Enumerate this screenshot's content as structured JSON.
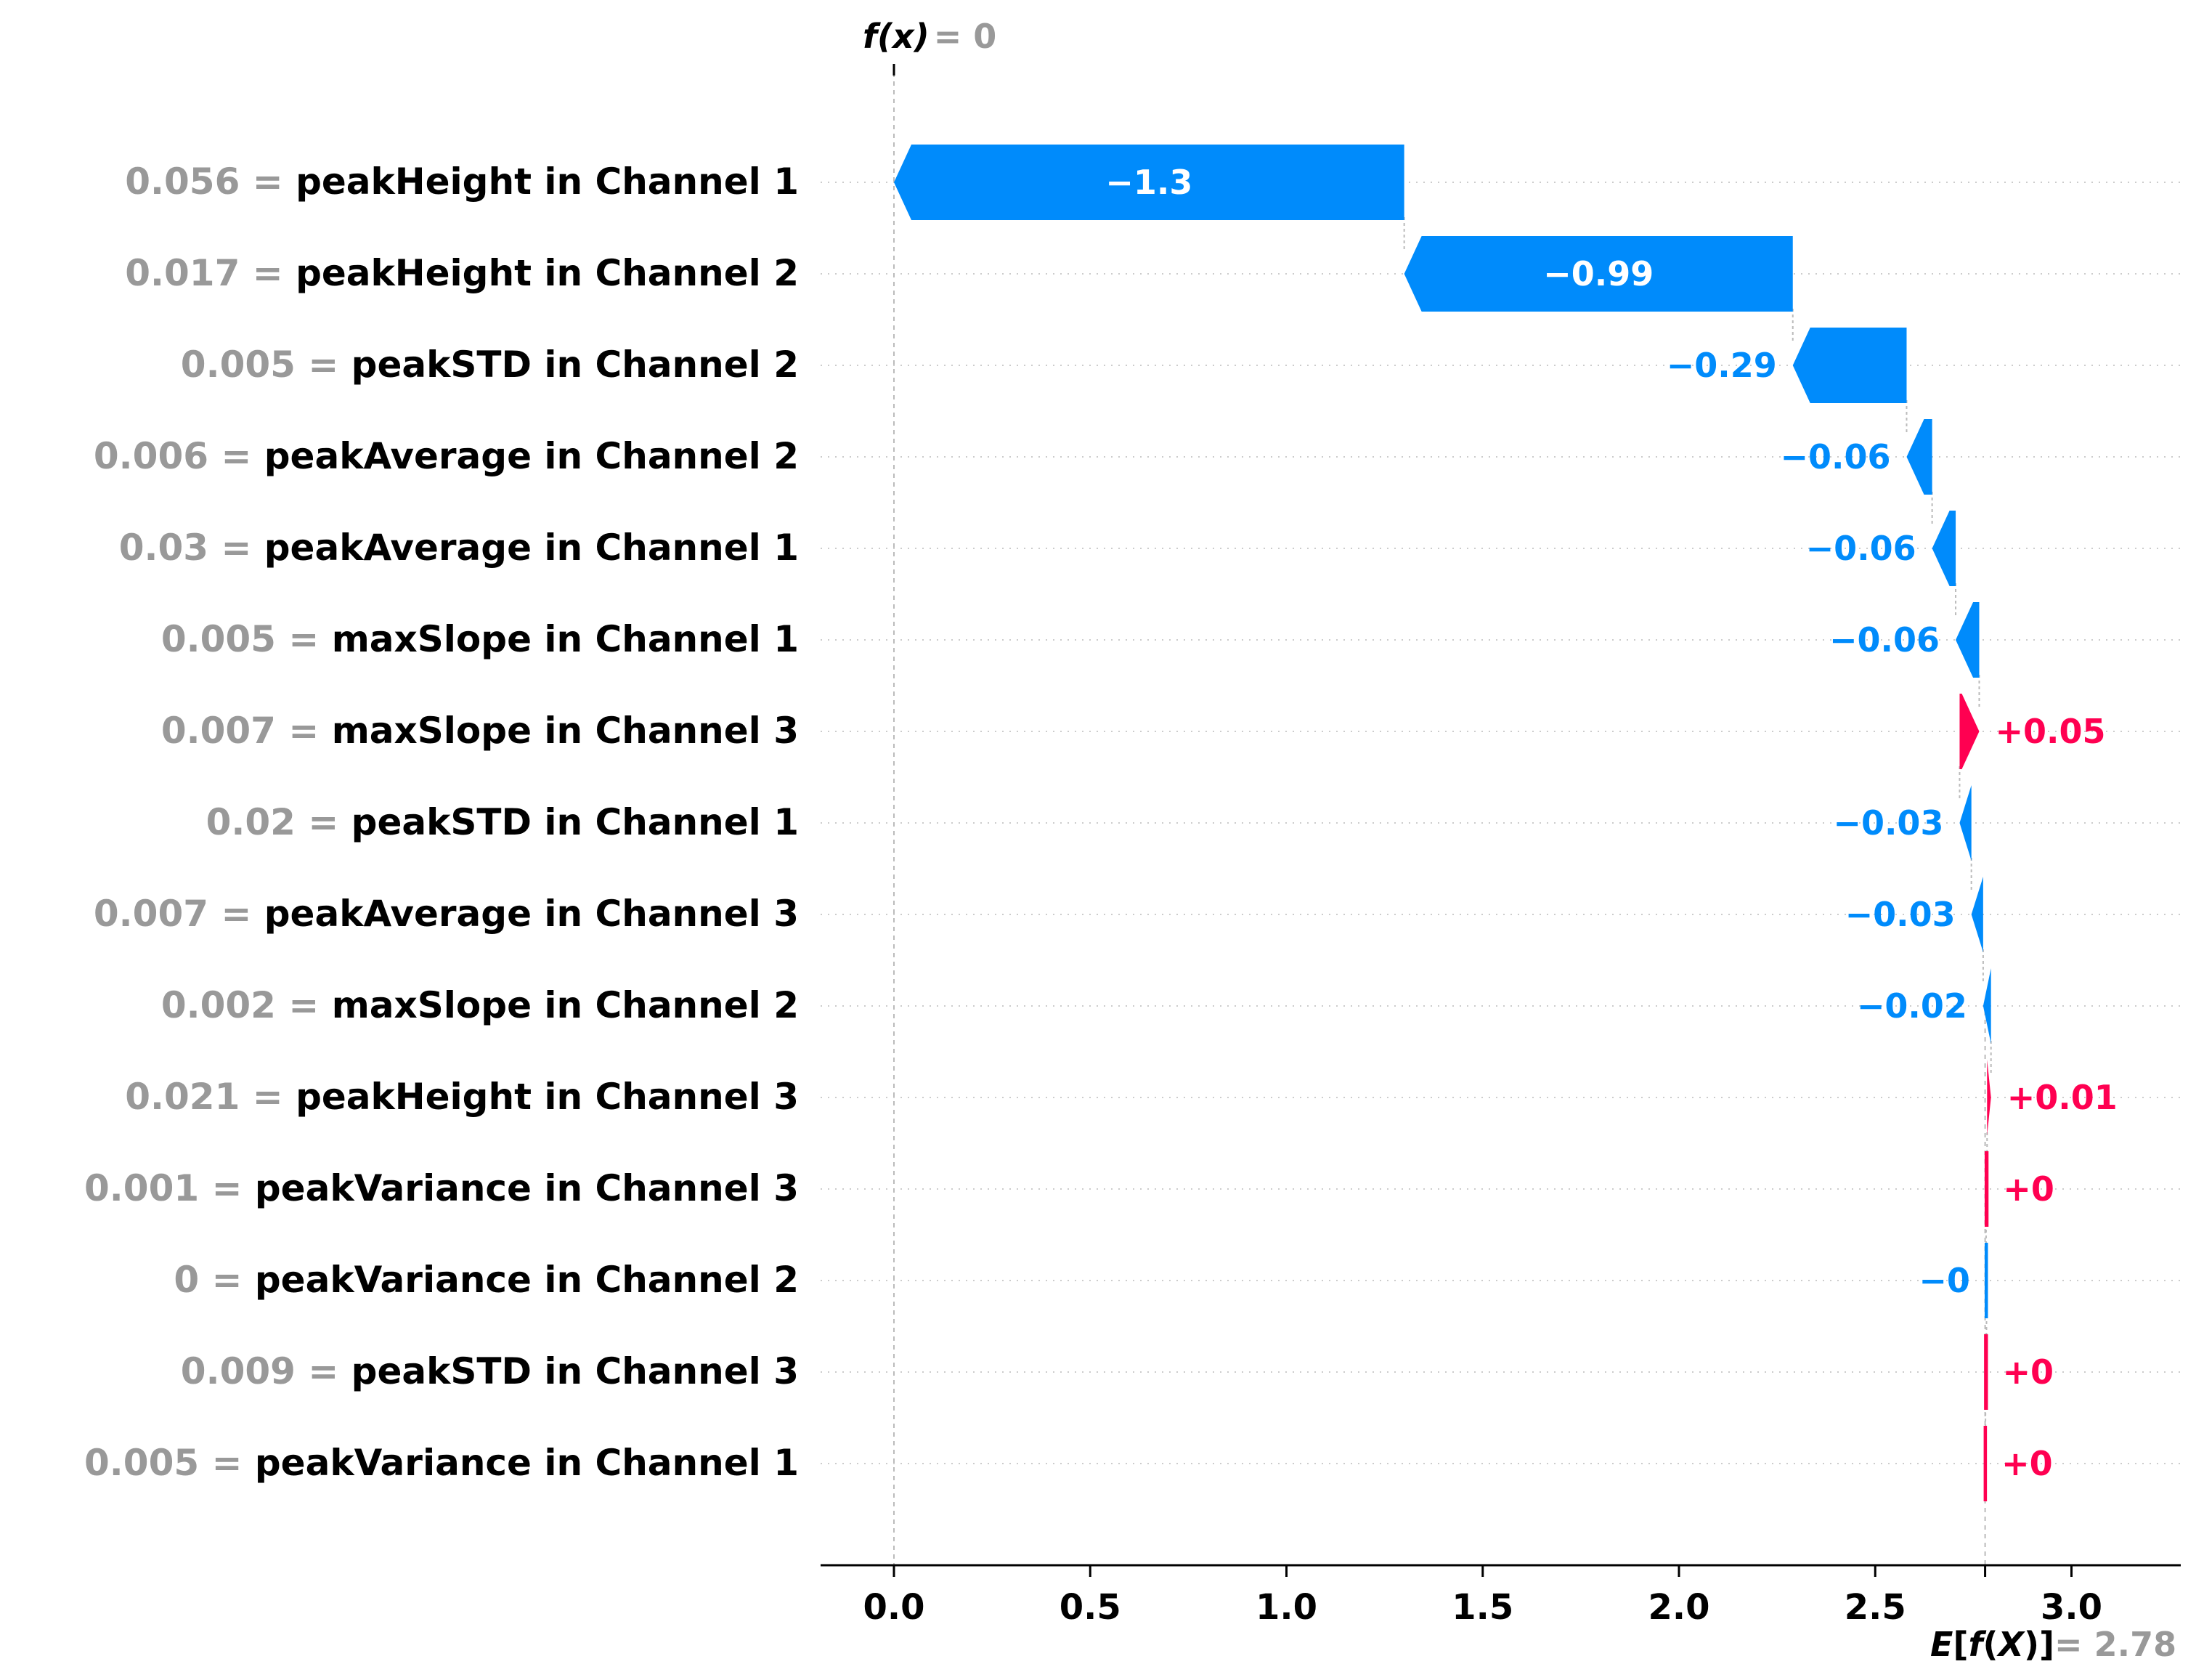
{
  "chart_data": {
    "type": "waterfall",
    "fx": {
      "label_f": "f",
      "label_x": "(x)",
      "value_text": "= 0",
      "value": 0
    },
    "base": {
      "label_e": "E",
      "label_f": "f",
      "label_X": "X",
      "value_text": "= 2.78",
      "value": 2.78
    },
    "xlim": [
      -0.18,
      3.27
    ],
    "xticks": [
      {
        "value": 0.0,
        "label": "0.0"
      },
      {
        "value": 0.5,
        "label": "0.5"
      },
      {
        "value": 1.0,
        "label": "1.0"
      },
      {
        "value": 1.5,
        "label": "1.5"
      },
      {
        "value": 2.0,
        "label": "2.0"
      },
      {
        "value": 2.5,
        "label": "2.5"
      },
      {
        "value": 3.0,
        "label": "3.0"
      }
    ],
    "features": [
      {
        "value_text": "0.056 =",
        "name": "peakHeight in Channel 1",
        "contribution": -1.3,
        "label": "−1.3",
        "start": 1.3,
        "end": 0.0
      },
      {
        "value_text": "0.017 =",
        "name": "peakHeight in Channel 2",
        "contribution": -0.99,
        "label": "−0.99",
        "start": 2.29,
        "end": 1.3
      },
      {
        "value_text": "0.005 =",
        "name": "peakSTD in Channel 2",
        "contribution": -0.29,
        "label": "−0.29",
        "start": 2.58,
        "end": 2.29
      },
      {
        "value_text": "0.006 =",
        "name": "peakAverage in Channel 2",
        "contribution": -0.06,
        "label": "−0.06",
        "start": 2.645,
        "end": 2.58
      },
      {
        "value_text": "0.03 =",
        "name": "peakAverage in Channel 1",
        "contribution": -0.06,
        "label": "−0.06",
        "start": 2.705,
        "end": 2.645
      },
      {
        "value_text": "0.005 =",
        "name": "maxSlope in Channel 1",
        "contribution": -0.06,
        "label": "−0.06",
        "start": 2.765,
        "end": 2.705
      },
      {
        "value_text": "0.007 =",
        "name": "maxSlope in Channel 3",
        "contribution": 0.05,
        "label": "+0.05",
        "start": 2.715,
        "end": 2.765
      },
      {
        "value_text": "0.02 =",
        "name": "peakSTD in Channel 1",
        "contribution": -0.03,
        "label": "−0.03",
        "start": 2.745,
        "end": 2.715
      },
      {
        "value_text": "0.007 =",
        "name": "peakAverage in Channel 3",
        "contribution": -0.03,
        "label": "−0.03",
        "start": 2.775,
        "end": 2.745
      },
      {
        "value_text": "0.002 =",
        "name": "maxSlope in Channel 2",
        "contribution": -0.02,
        "label": "−0.02",
        "start": 2.795,
        "end": 2.775
      },
      {
        "value_text": "0.021 =",
        "name": "peakHeight in Channel 3",
        "contribution": 0.01,
        "label": "+0.01",
        "start": 2.785,
        "end": 2.795
      },
      {
        "value_text": "0.001 =",
        "name": "peakVariance in Channel 3",
        "contribution": 0.0,
        "label": "+0",
        "start": 2.7825,
        "end": 2.785
      },
      {
        "value_text": "0 =",
        "name": "peakVariance in Channel 2",
        "contribution": -0.0,
        "label": "−0",
        "start": 2.7835,
        "end": 2.7825
      },
      {
        "value_text": "0.009 =",
        "name": "peakSTD in Channel 3",
        "contribution": 0.0,
        "label": "+0",
        "start": 2.781,
        "end": 2.7835
      },
      {
        "value_text": "0.005 =",
        "name": "peakVariance in Channel 1",
        "contribution": 0.0,
        "label": "+0",
        "start": 2.78,
        "end": 2.781
      }
    ],
    "colors": {
      "negative": "#008bfb",
      "positive": "#ff0051",
      "feature_value": "#999999",
      "feature_name": "#000000",
      "grid": "#cccccc",
      "axis": "#000000"
    }
  }
}
